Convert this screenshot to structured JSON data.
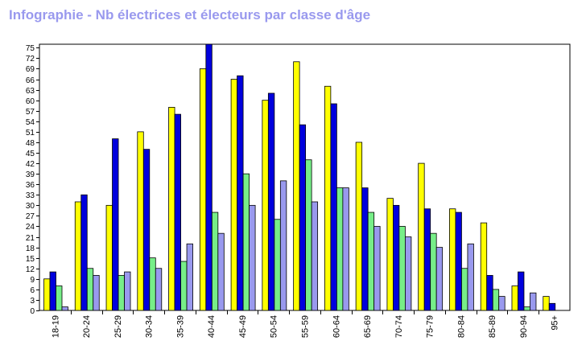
{
  "chart_data": {
    "type": "bar",
    "title": "Infographie - Nb électrices et électeurs par classe d'âge",
    "xlabel": "",
    "ylabel": "",
    "ylim": [
      0,
      76
    ],
    "yticks": [
      0,
      3,
      6,
      9,
      12,
      15,
      18,
      21,
      24,
      27,
      30,
      33,
      36,
      39,
      42,
      45,
      48,
      51,
      54,
      57,
      60,
      63,
      66,
      69,
      72,
      75
    ],
    "grid": false,
    "legend": "none",
    "categories": [
      "18-19",
      "20-24",
      "25-29",
      "30-34",
      "35-39",
      "40-44",
      "45-49",
      "50-54",
      "55-59",
      "60-64",
      "65-69",
      "70-74",
      "75-79",
      "80-84",
      "85-89",
      "90-94",
      "95+"
    ],
    "series": [
      {
        "color": "#ffff00",
        "values": [
          9,
          31,
          30,
          51,
          58,
          69,
          66,
          60,
          71,
          64,
          48,
          32,
          42,
          29,
          25,
          7,
          4
        ]
      },
      {
        "color": "#0000dd",
        "values": [
          11,
          33,
          49,
          46,
          56,
          76,
          67,
          62,
          53,
          59,
          35,
          30,
          29,
          28,
          10,
          11,
          2
        ]
      },
      {
        "color": "#77ee88",
        "values": [
          7,
          12,
          10,
          15,
          14,
          28,
          39,
          26,
          43,
          35,
          28,
          24,
          22,
          12,
          6,
          1,
          0
        ]
      },
      {
        "color": "#9999ee",
        "values": [
          1,
          10,
          11,
          12,
          19,
          22,
          30,
          37,
          31,
          35,
          24,
          21,
          18,
          19,
          4,
          5,
          0
        ]
      }
    ]
  }
}
